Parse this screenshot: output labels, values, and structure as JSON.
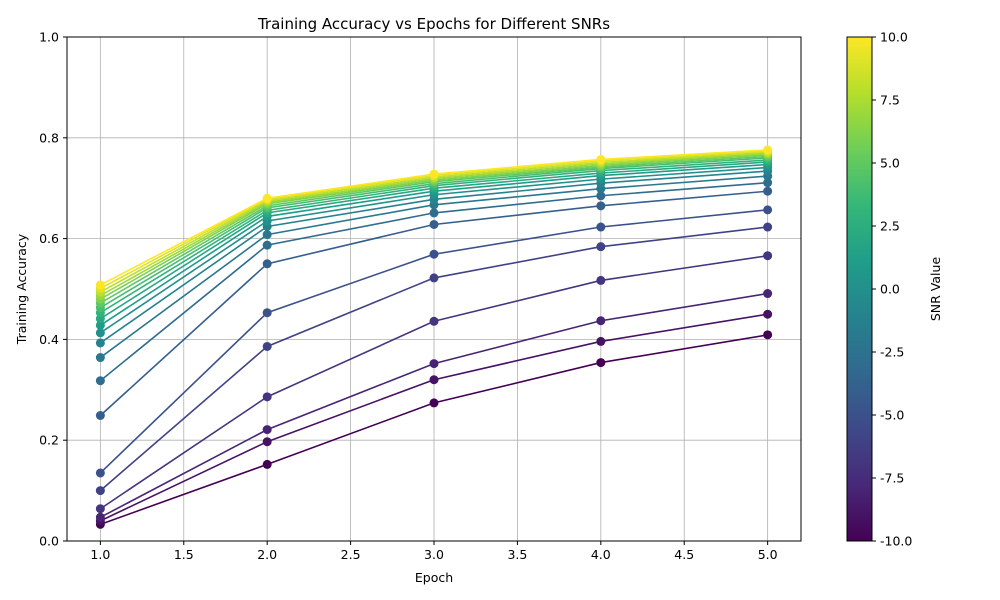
{
  "chart_data": {
    "type": "line",
    "title": "Training Accuracy vs Epochs for Different SNRs",
    "xlabel": "Epoch",
    "ylabel": "Training Accuracy",
    "xlim": [
      0.8,
      5.2
    ],
    "ylim": [
      0.0,
      1.0
    ],
    "x_ticks": [
      "1.0",
      "1.5",
      "2.0",
      "2.5",
      "3.0",
      "3.5",
      "4.0",
      "4.5",
      "5.0"
    ],
    "y_ticks": [
      "0.0",
      "0.2",
      "0.4",
      "0.6",
      "0.8",
      "1.0"
    ],
    "grid": true,
    "colormap": "viridis",
    "colorbar": {
      "label": "SNR Value",
      "min": -10.0,
      "max": 10.0,
      "ticks": [
        "-10.0",
        "-7.5",
        "-5.0",
        "-2.5",
        "0.0",
        "2.5",
        "5.0",
        "7.5",
        "10.0"
      ]
    },
    "x": [
      1,
      2,
      3,
      4,
      5
    ],
    "series": [
      {
        "snr": -10,
        "values": [
          0.033,
          0.152,
          0.274,
          0.354,
          0.409
        ]
      },
      {
        "snr": -9,
        "values": [
          0.04,
          0.197,
          0.32,
          0.396,
          0.45
        ]
      },
      {
        "snr": -8,
        "values": [
          0.047,
          0.221,
          0.352,
          0.437,
          0.491
        ]
      },
      {
        "snr": -7,
        "values": [
          0.064,
          0.286,
          0.436,
          0.517,
          0.566
        ]
      },
      {
        "snr": -6,
        "values": [
          0.1,
          0.386,
          0.522,
          0.584,
          0.623
        ]
      },
      {
        "snr": -5,
        "values": [
          0.135,
          0.453,
          0.569,
          0.623,
          0.657
        ]
      },
      {
        "snr": -4,
        "values": [
          0.249,
          0.55,
          0.628,
          0.665,
          0.694
        ]
      },
      {
        "snr": -3,
        "values": [
          0.318,
          0.587,
          0.651,
          0.685,
          0.711
        ]
      },
      {
        "snr": -2,
        "values": [
          0.364,
          0.608,
          0.667,
          0.699,
          0.724
        ]
      },
      {
        "snr": -1,
        "values": [
          0.393,
          0.624,
          0.678,
          0.71,
          0.734
        ]
      },
      {
        "snr": 0,
        "values": [
          0.413,
          0.635,
          0.687,
          0.718,
          0.741
        ]
      },
      {
        "snr": 1,
        "values": [
          0.428,
          0.644,
          0.694,
          0.725,
          0.747
        ]
      },
      {
        "snr": 2,
        "values": [
          0.441,
          0.651,
          0.7,
          0.73,
          0.752
        ]
      },
      {
        "snr": 3,
        "values": [
          0.453,
          0.656,
          0.705,
          0.735,
          0.756
        ]
      },
      {
        "snr": 4,
        "values": [
          0.463,
          0.661,
          0.709,
          0.739,
          0.76
        ]
      },
      {
        "snr": 5,
        "values": [
          0.472,
          0.665,
          0.713,
          0.742,
          0.763
        ]
      },
      {
        "snr": 6,
        "values": [
          0.48,
          0.669,
          0.716,
          0.745,
          0.766
        ]
      },
      {
        "snr": 7,
        "values": [
          0.487,
          0.672,
          0.719,
          0.748,
          0.769
        ]
      },
      {
        "snr": 8,
        "values": [
          0.494,
          0.675,
          0.722,
          0.751,
          0.771
        ]
      },
      {
        "snr": 9,
        "values": [
          0.501,
          0.678,
          0.725,
          0.754,
          0.774
        ]
      },
      {
        "snr": 10,
        "values": [
          0.508,
          0.68,
          0.728,
          0.757,
          0.776
        ]
      }
    ]
  }
}
